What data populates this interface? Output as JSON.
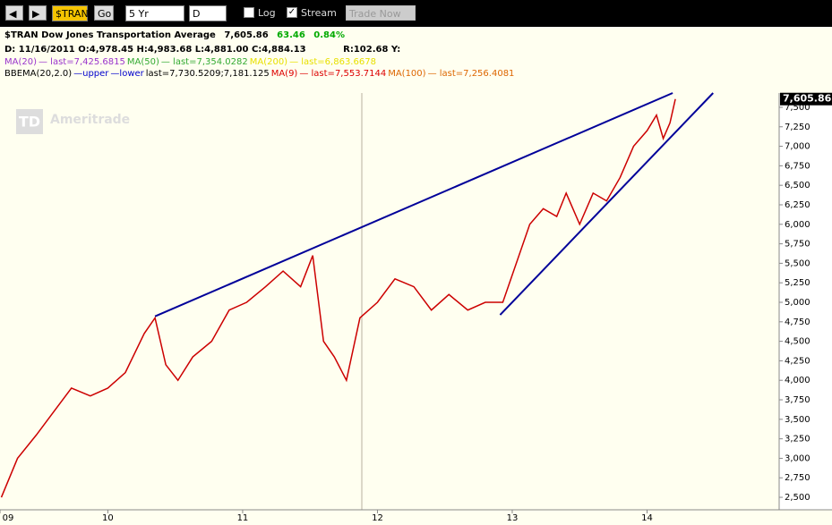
{
  "toolbar": {
    "symbol": "$TRAN",
    "go": "Go",
    "range": "5 Yr",
    "interval": "D",
    "log": "Log",
    "stream": "Stream",
    "trade": "Trade Now"
  },
  "header": {
    "title": "$TRAN Dow Jones Transportation Average",
    "last": "7,605.86",
    "change": "63.46",
    "change_pct": "0.84%",
    "ohlc": "D: 11/16/2011 O:4,978.45 H:4,983.68 L:4,881.00 C:4,884.13",
    "range": "R:102.68 Y:",
    "studies1": [
      {
        "text": "MA(20)",
        "color": "#9933cc"
      },
      {
        "text": "— last=7,425.6815",
        "color": "#9933cc"
      },
      {
        "text": "MA(50)",
        "color": "#33aa33"
      },
      {
        "text": "— last=7,354.0282",
        "color": "#33aa33"
      },
      {
        "text": "MA(200)",
        "color": "#e8e000"
      },
      {
        "text": "— last=6,863.6678",
        "color": "#e8e000"
      }
    ],
    "studies2": [
      {
        "text": "BBEMA(20,2.0)",
        "color": "#000000"
      },
      {
        "text": "—upper",
        "color": "#0000cc"
      },
      {
        "text": "—lower",
        "color": "#0000cc"
      },
      {
        "text": "last=7,730.5209;7,181.125",
        "color": "#000000"
      },
      {
        "text": "MA(9)",
        "color": "#dd0000"
      },
      {
        "text": "— last=7,553.7144",
        "color": "#dd0000"
      },
      {
        "text": "MA(100)",
        "color": "#dd6600"
      },
      {
        "text": "— last=7,256.4081",
        "color": "#dd6600"
      }
    ]
  },
  "watermark": {
    "logo": "TD",
    "brand": "Ameritrade"
  },
  "chart_data": {
    "type": "line",
    "x": [
      2009.21,
      2009.33,
      2009.47,
      2009.6,
      2009.73,
      2009.87,
      2010.0,
      2010.13,
      2010.27,
      2010.35,
      2010.43,
      2010.52,
      2010.63,
      2010.77,
      2010.9,
      2011.03,
      2011.17,
      2011.3,
      2011.43,
      2011.52,
      2011.6,
      2011.68,
      2011.77,
      2011.87,
      2012.0,
      2012.13,
      2012.27,
      2012.4,
      2012.53,
      2012.67,
      2012.8,
      2012.93,
      2013.03,
      2013.13,
      2013.23,
      2013.33,
      2013.4,
      2013.5,
      2013.6,
      2013.7,
      2013.8,
      2013.9,
      2014.0,
      2014.07,
      2014.12,
      2014.17,
      2014.21
    ],
    "series": [
      {
        "color": "#cc0000",
        "values": [
          2500,
          3000,
          3300,
          3600,
          3900,
          3800,
          3900,
          4100,
          4600,
          4800,
          4200,
          4000,
          4300,
          4500,
          4900,
          5000,
          5200,
          5400,
          5200,
          5600,
          4500,
          4300,
          4000,
          4800,
          5000,
          5300,
          5200,
          4900,
          5100,
          4900,
          5000,
          5000,
          5500,
          6000,
          6200,
          6100,
          6400,
          6000,
          6400,
          6300,
          6600,
          7000,
          7200,
          7400,
          7100,
          7300,
          7605.86
        ]
      }
    ],
    "last_label": "7,605.86",
    "trendlines": [
      {
        "color": "#000099",
        "x": [
          2010.35,
          2014.19
        ],
        "y": [
          4820,
          7683
        ]
      },
      {
        "color": "#000099",
        "x": [
          2012.91,
          2014.49
        ],
        "y": [
          4839,
          7683
        ]
      }
    ],
    "xlim": [
      2009.2,
      2014.98
    ],
    "ylim": [
      2340,
      7683
    ],
    "xticks": [
      {
        "value": 2009.2,
        "label": "09"
      },
      {
        "value": 2010,
        "label": "10"
      },
      {
        "value": 2011,
        "label": "11"
      },
      {
        "value": 2012,
        "label": "12"
      },
      {
        "value": 2013,
        "label": "13"
      },
      {
        "value": 2014,
        "label": "14"
      }
    ],
    "yticks": [
      {
        "value": 2500,
        "label": "2,500"
      },
      {
        "value": 2750,
        "label": "2,750"
      },
      {
        "value": 3000,
        "label": "3,000"
      },
      {
        "value": 3250,
        "label": "3,250"
      },
      {
        "value": 3500,
        "label": "3,500"
      },
      {
        "value": 3750,
        "label": "3,750"
      },
      {
        "value": 4000,
        "label": "4,000"
      },
      {
        "value": 4250,
        "label": "4,250"
      },
      {
        "value": 4500,
        "label": "4,500"
      },
      {
        "value": 4750,
        "label": "4,750"
      },
      {
        "value": 5000,
        "label": "5,000"
      },
      {
        "value": 5250,
        "label": "5,250"
      },
      {
        "value": 5500,
        "label": "5,500"
      },
      {
        "value": 5750,
        "label": "5,750"
      },
      {
        "value": 6000,
        "label": "6,000"
      },
      {
        "value": 6250,
        "label": "6,250"
      },
      {
        "value": 6500,
        "label": "6,500"
      },
      {
        "value": 6750,
        "label": "6,750"
      },
      {
        "value": 7000,
        "label": "7,000"
      },
      {
        "value": 7250,
        "label": "7,250"
      },
      {
        "value": 7500,
        "label": "7,500"
      }
    ]
  }
}
